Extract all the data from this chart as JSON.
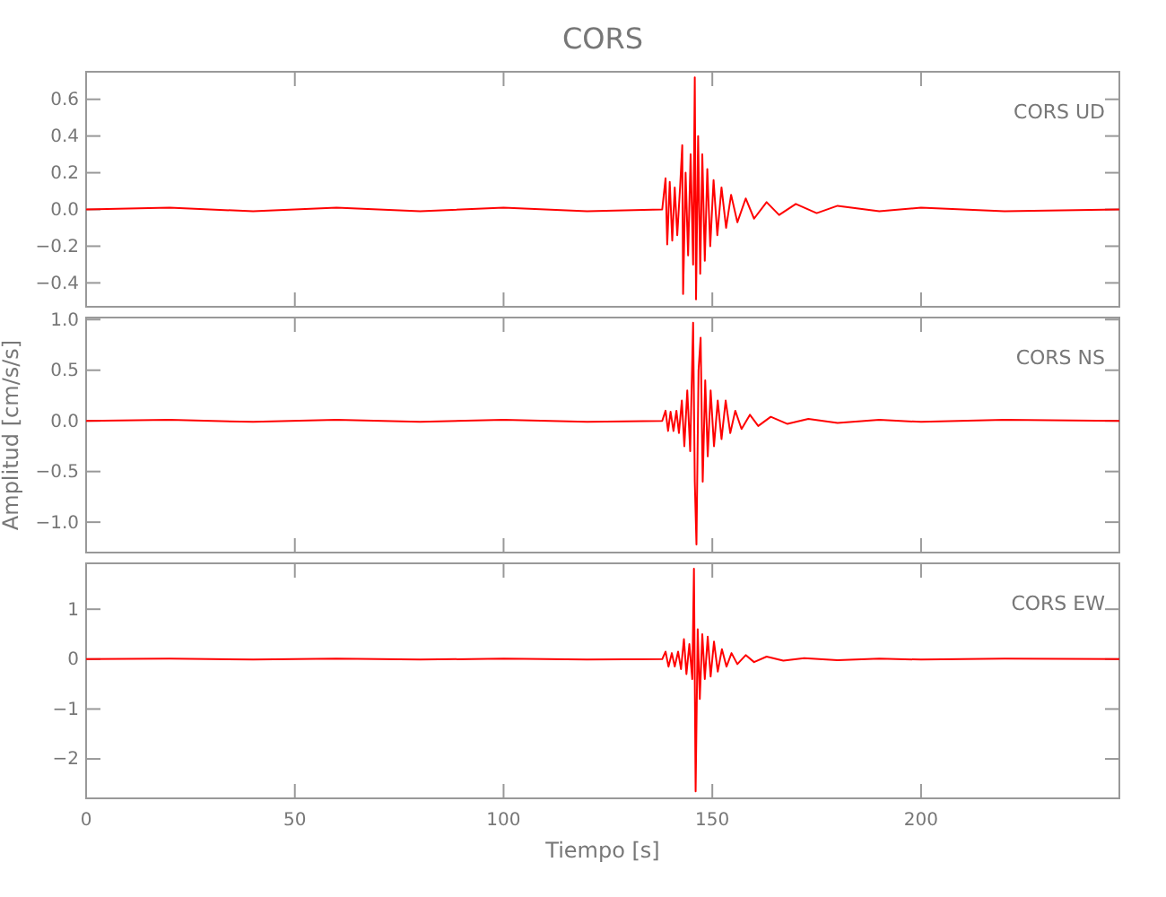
{
  "chart_data": [
    {
      "type": "line",
      "title": "CORS",
      "annotations": [
        "CORS   UD"
      ],
      "xlim": [
        0,
        247.5
      ],
      "xticks": [
        0,
        50,
        100,
        150,
        200
      ],
      "ylim": [
        -0.53,
        0.75
      ],
      "yticks": [
        {
          "value": 0.6,
          "label": "0.6"
        },
        {
          "value": 0.4,
          "label": "0.4"
        },
        {
          "value": 0.2,
          "label": "0.2"
        },
        {
          "value": 0,
          "label": "0.0"
        },
        {
          "value": -0.2,
          "label": "−0.2"
        },
        {
          "value": -0.4,
          "label": "−0.4"
        }
      ],
      "tick_labels": "y",
      "grid": false,
      "series": [
        {
          "color": "#ff0000",
          "x": [
            0,
            20,
            40,
            60,
            80,
            100,
            120,
            138,
            138.8,
            139.2,
            139.8,
            140.4,
            141,
            141.6,
            142.3,
            142.8,
            143,
            143.6,
            144.2,
            144.8,
            145.4,
            145.8,
            146.1,
            146.6,
            147.1,
            147.6,
            148.2,
            148.8,
            149.5,
            150.3,
            151.2,
            152.2,
            153.3,
            154.5,
            156,
            158,
            160,
            163,
            166,
            170,
            175,
            180,
            190,
            200,
            220,
            247.5
          ],
          "values": [
            0,
            0.01,
            -0.01,
            0.01,
            -0.01,
            0.01,
            -0.01,
            0,
            0.17,
            -0.19,
            0.15,
            -0.17,
            0.12,
            -0.14,
            0.13,
            0.35,
            -0.46,
            0.2,
            -0.25,
            0.3,
            -0.3,
            0.72,
            -0.49,
            0.4,
            -0.35,
            0.3,
            -0.28,
            0.22,
            -0.2,
            0.16,
            -0.14,
            0.12,
            -0.1,
            0.08,
            -0.07,
            0.06,
            -0.05,
            0.04,
            -0.03,
            0.03,
            -0.02,
            0.02,
            -0.01,
            0.01,
            -0.01,
            0
          ]
        }
      ]
    },
    {
      "type": "line",
      "ylabel": "Amplitud  [cm/s/s]",
      "annotations": [
        "CORS   NS"
      ],
      "xlim": [
        0,
        247.5
      ],
      "xticks": [
        0,
        50,
        100,
        150,
        200
      ],
      "ylim": [
        -1.3,
        1.02
      ],
      "yticks": [
        {
          "value": 1,
          "label": "1.0"
        },
        {
          "value": 0.5,
          "label": "0.5"
        },
        {
          "value": 0,
          "label": "0.0"
        },
        {
          "value": -0.5,
          "label": "−0.5"
        },
        {
          "value": -1,
          "label": "−1.0"
        }
      ],
      "tick_labels": "y",
      "grid": false,
      "series": [
        {
          "color": "#ff0000",
          "x": [
            0,
            20,
            40,
            60,
            80,
            100,
            120,
            138,
            138.8,
            139.4,
            140,
            140.7,
            141.4,
            142,
            142.7,
            143.3,
            144,
            144.7,
            145.4,
            145.8,
            146.2,
            146.7,
            147.2,
            147.7,
            148.3,
            148.9,
            149.6,
            150.4,
            151.3,
            152.2,
            153.2,
            154.3,
            155.5,
            157,
            159,
            161,
            164,
            168,
            173,
            180,
            190,
            200,
            220,
            247.5
          ],
          "values": [
            0,
            0.01,
            -0.01,
            0.01,
            -0.01,
            0.01,
            -0.01,
            0,
            0.1,
            -0.1,
            0.09,
            -0.1,
            0.1,
            -0.12,
            0.2,
            -0.25,
            0.3,
            -0.3,
            0.97,
            -0.6,
            -1.22,
            0.5,
            0.82,
            -0.6,
            0.4,
            -0.35,
            0.3,
            -0.25,
            0.2,
            -0.18,
            0.2,
            -0.12,
            0.1,
            -0.08,
            0.06,
            -0.05,
            0.04,
            -0.03,
            0.02,
            -0.02,
            0.01,
            -0.01,
            0.01,
            0
          ]
        }
      ]
    },
    {
      "type": "line",
      "xlabel": "Tiempo  [s]",
      "annotations": [
        "CORS   EW"
      ],
      "xlim": [
        0,
        247.5
      ],
      "xticks": [
        0,
        50,
        100,
        150,
        200
      ],
      "ylim": [
        -2.79,
        1.92
      ],
      "yticks": [
        1,
        0,
        {
          "value": -1,
          "label": "−1"
        },
        {
          "value": -2,
          "label": "−2"
        }
      ],
      "grid": false,
      "series": [
        {
          "color": "#ff0000",
          "x": [
            0,
            20,
            40,
            60,
            80,
            100,
            120,
            138,
            138.8,
            139.5,
            140.3,
            141,
            141.8,
            142.5,
            143.2,
            143.8,
            144.5,
            145.2,
            145.6,
            146,
            146.5,
            147,
            147.6,
            148.2,
            148.9,
            149.6,
            150.4,
            151.3,
            152.3,
            153.4,
            154.6,
            156,
            158,
            160,
            163,
            167,
            172,
            180,
            190,
            200,
            220,
            247.5
          ],
          "values": [
            0,
            0.01,
            -0.01,
            0.01,
            -0.01,
            0.01,
            -0.01,
            0,
            0.15,
            -0.15,
            0.12,
            -0.15,
            0.15,
            -0.2,
            0.4,
            -0.3,
            0.3,
            -0.4,
            1.81,
            -2.65,
            0.6,
            -0.8,
            0.5,
            -0.4,
            0.45,
            -0.35,
            0.35,
            -0.25,
            0.2,
            -0.15,
            0.12,
            -0.1,
            0.08,
            -0.06,
            0.05,
            -0.03,
            0.02,
            -0.02,
            0.01,
            -0.01,
            0.01,
            0
          ]
        }
      ]
    }
  ]
}
